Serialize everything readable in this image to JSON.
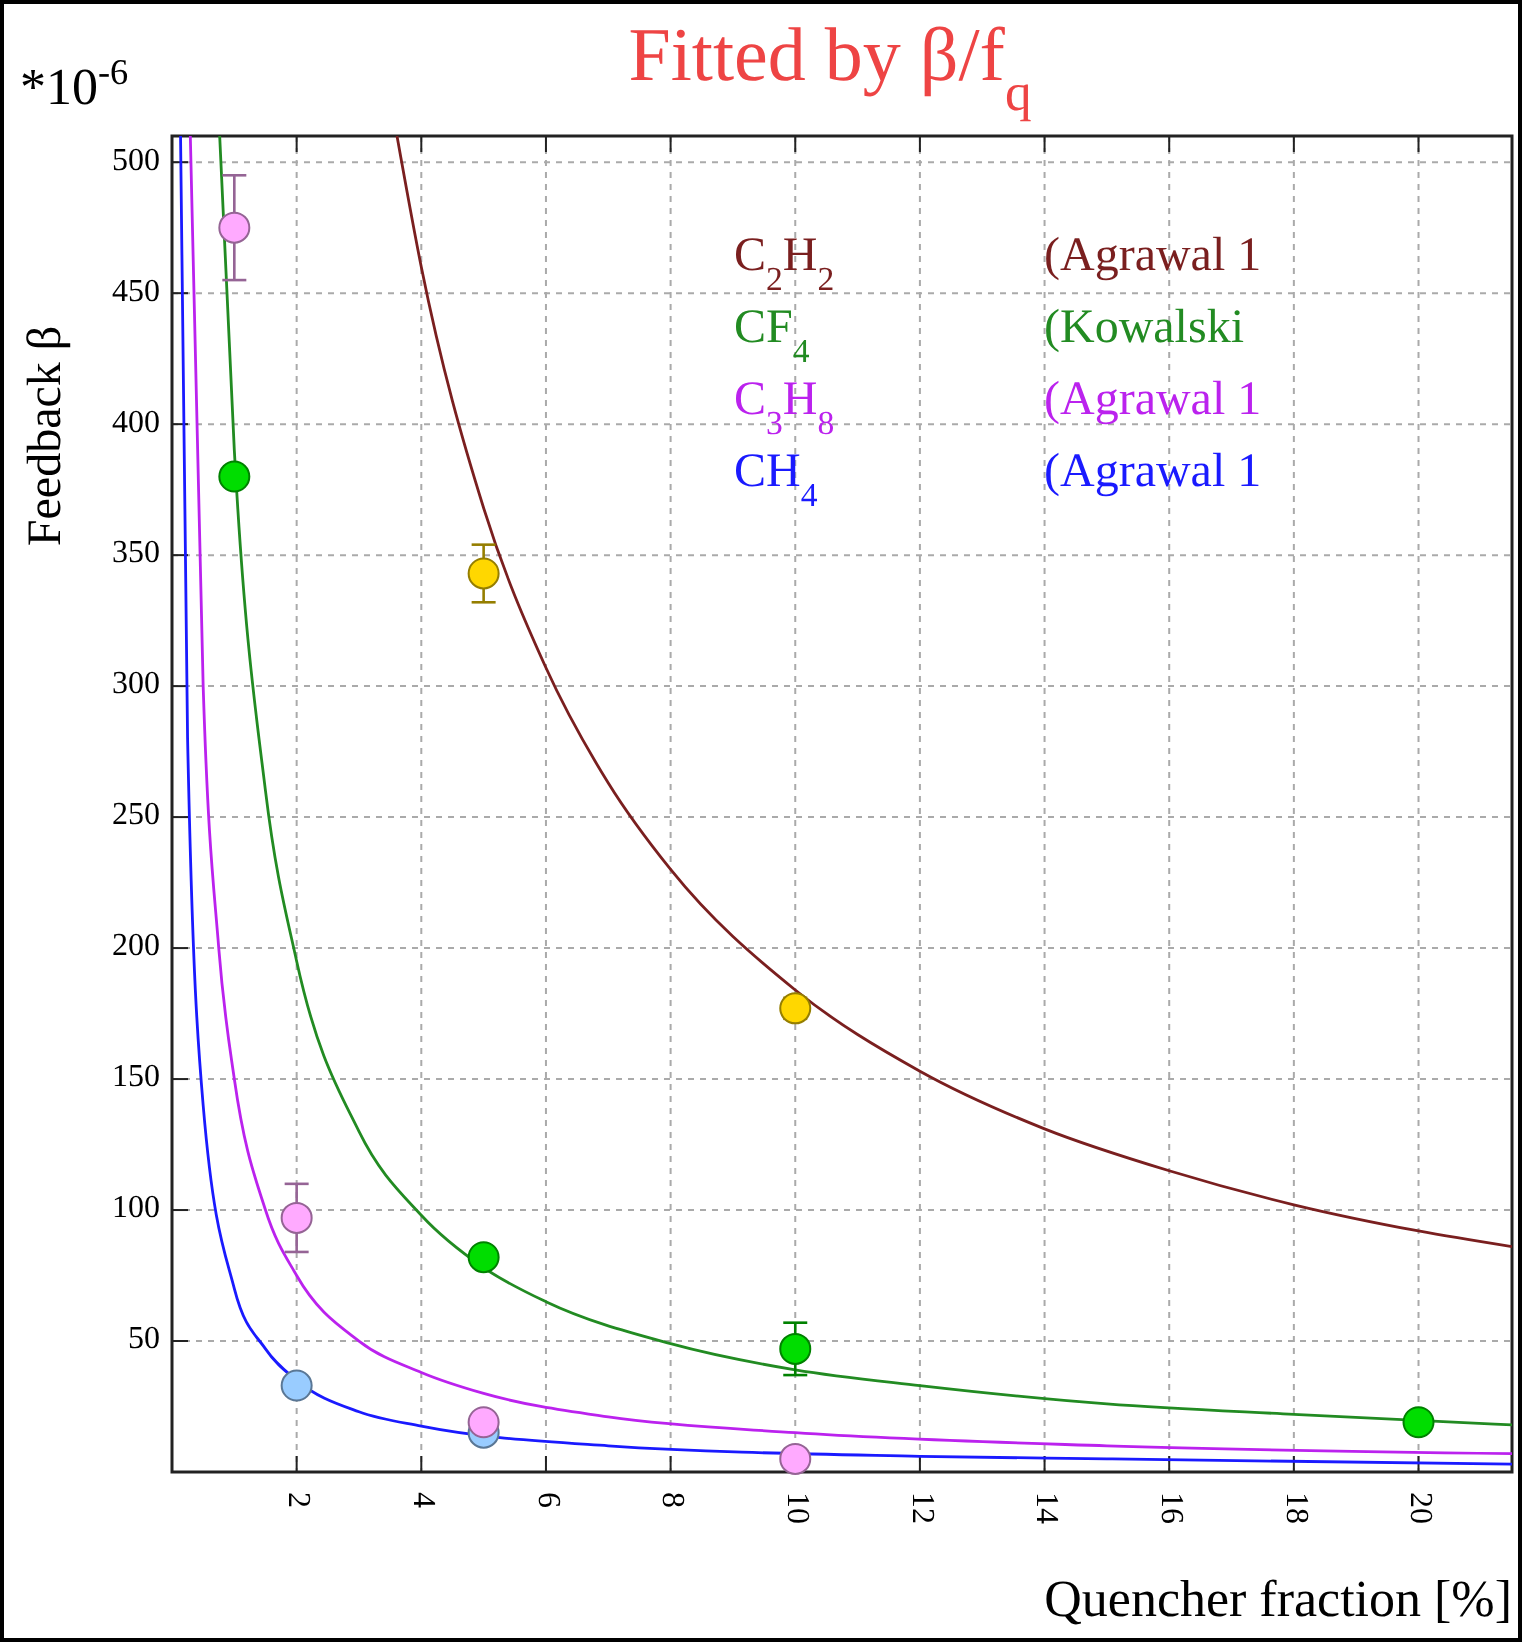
{
  "chart_data": {
    "type": "line",
    "title": "Fitted by β/f$_{q}$",
    "xlabel": "Quencher fraction [%]",
    "ylabel": "Feedback β",
    "annotations": [
      "*10$^{-6}$"
    ],
    "xlim": [
      0,
      21.5
    ],
    "xticks": [
      2,
      4,
      6,
      8,
      10,
      12,
      14,
      16,
      18,
      20
    ],
    "ylim": [
      0,
      510
    ],
    "yticks": [
      50,
      100,
      150,
      200,
      250,
      300,
      350,
      400,
      450,
      500
    ],
    "grid": true,
    "marker": "none",
    "line_style": "solid",
    "series": [
      {
        "name": "C$_{2}$H$_{2}$ (Agrawal 1",
        "color": "#7a1f1f",
        "x": [
          3.61,
          4,
          5,
          6,
          7,
          8,
          10,
          12,
          14,
          16,
          18,
          20,
          21.5
        ],
        "values": [
          510,
          460,
          368,
          307,
          263,
          230,
          184,
          153,
          131,
          115,
          102,
          92,
          86
        ]
      },
      {
        "name": "CF$_{4}$ (Kowalski",
        "color": "#228b22",
        "x": [
          0.765,
          1,
          1.5,
          2,
          3,
          4,
          5,
          6,
          8,
          10,
          12,
          15,
          18,
          21.5
        ],
        "values": [
          510,
          390,
          260,
          195,
          130,
          98,
          78,
          65,
          49,
          39,
          33,
          26,
          22,
          18
        ]
      },
      {
        "name": "C$_{3}$H$_{8}$ (Agrawal 1",
        "color": "#bb22ee",
        "x": [
          0.294,
          0.5,
          0.75,
          1,
          1.5,
          2,
          3,
          4,
          5,
          7,
          10,
          15,
          21.5
        ],
        "values": [
          510,
          300,
          200,
          150,
          100,
          75,
          50,
          38,
          30,
          21,
          15,
          10,
          7
        ]
      },
      {
        "name": "CH$_{4}$ (Agrawal 1",
        "color": "#1a1aff",
        "x": [
          0.137,
          0.25,
          0.5,
          1,
          1.5,
          2,
          3,
          4,
          7,
          12,
          15,
          21.5
        ],
        "values": [
          510,
          280,
          140,
          70,
          47,
          35,
          23,
          17.5,
          10,
          6,
          5,
          3
        ]
      },
      {
        "type": "scatter",
        "marker": "circle",
        "color": "#ffd700",
        "x": [
          5,
          10
        ],
        "values": [
          343,
          177
        ],
        "errors": [
          11,
          4
        ]
      },
      {
        "type": "scatter",
        "marker": "circle",
        "color": "#00dd00",
        "x": [
          1,
          5,
          10,
          20
        ],
        "values": [
          380,
          82,
          47,
          19
        ],
        "errors": [
          null,
          null,
          10,
          null
        ]
      },
      {
        "type": "scatter",
        "marker": "circle",
        "color": "#99ccff",
        "x": [
          2,
          5
        ],
        "values": [
          33,
          15
        ],
        "errors": [
          null,
          null
        ]
      },
      {
        "type": "scatter",
        "marker": "circle",
        "color": "#ffaaff",
        "x": [
          1,
          2,
          5,
          10
        ],
        "values": [
          475,
          97,
          19,
          5
        ],
        "errors": [
          20,
          13,
          null,
          null
        ]
      }
    ]
  }
}
